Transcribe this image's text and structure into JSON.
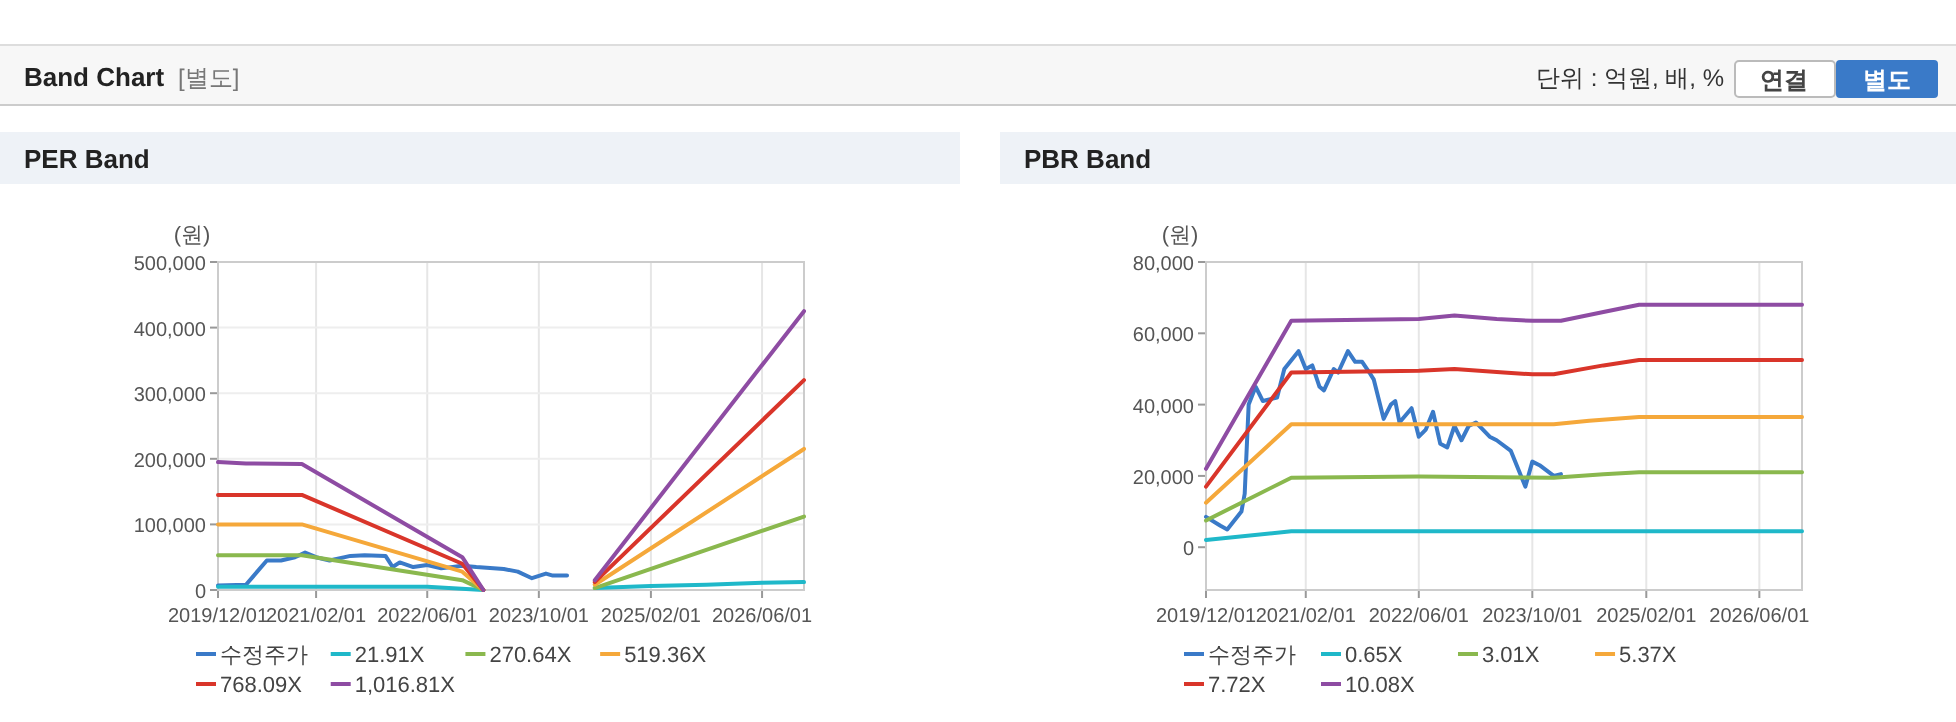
{
  "chart_data": [
    {
      "type": "other",
      "title": "Band Chart",
      "annotations": [
        "[별도]",
        "단위 : 억원, 배, %",
        "연결",
        "별도"
      ]
    },
    {
      "type": "line",
      "title": "PER Band",
      "ylabel": "(원)",
      "xlim": [
        "2019-12-01",
        "2026-12-01"
      ],
      "ylim": [
        0,
        500000
      ],
      "xticks": [
        {
          "value": "2019-12-01",
          "label": "2019/12/01"
        },
        {
          "value": "2021-02-01",
          "label": "2021/02/01"
        },
        {
          "value": "2022-06-01",
          "label": "2022/06/01"
        },
        {
          "value": "2023-10-01",
          "label": "2023/10/01"
        },
        {
          "value": "2025-02-01",
          "label": "2025/02/01"
        },
        {
          "value": "2026-06-01",
          "label": "2026/06/01"
        }
      ],
      "yticks": [
        0,
        {
          "value": 100000,
          "label": "100,000"
        },
        {
          "value": 200000,
          "label": "200,000"
        },
        {
          "value": 300000,
          "label": "300,000"
        },
        {
          "value": 400000,
          "label": "400,000"
        },
        {
          "value": 500000,
          "label": "500,000"
        }
      ],
      "grid": true,
      "legend": "bottom",
      "series": [
        {
          "name": "수정주가",
          "color": "#3a7ac8",
          "x": [
            "2019-12-01",
            "2020-04-01",
            "2020-07-01",
            "2020-09-01",
            "2020-11-01",
            "2020-12-15",
            "2021-02-01",
            "2021-04-01",
            "2021-07-01",
            "2021-09-01",
            "2021-12-01",
            "2022-01-01",
            "2022-02-01",
            "2022-04-01",
            "2022-06-01",
            "2022-08-01",
            "2022-11-01",
            "2023-01-01",
            "2023-05-01",
            "2023-07-01",
            "2023-09-01",
            "2023-11-01",
            "2023-12-01",
            "2024-02-01"
          ],
          "values": [
            7000,
            8000,
            45000,
            45000,
            50000,
            57000,
            50000,
            45000,
            52000,
            53000,
            52000,
            35000,
            42000,
            35000,
            38000,
            33000,
            37000,
            35000,
            32000,
            28000,
            18000,
            25000,
            22000,
            22000
          ]
        },
        {
          "name": "21.91X",
          "color": "#1fb8c9",
          "x": [
            "2019-12-01",
            "2022-06-01",
            "2023-02-01",
            "2023-10-01",
            "2024-06-01",
            "2025-02-01",
            "2025-10-01",
            "2026-06-01",
            "2026-12-01"
          ],
          "values": [
            5000,
            5000,
            0,
            null,
            3000,
            6000,
            8000,
            11000,
            12000
          ]
        },
        {
          "name": "270.64X",
          "color": "#8ab84e",
          "x": [
            "2019-12-01",
            "2020-12-01",
            "2022-11-01",
            "2023-02-01",
            "2023-10-01",
            "2024-06-01",
            "2026-12-01"
          ],
          "values": [
            53000,
            53000,
            15000,
            0,
            null,
            3000,
            112000
          ]
        },
        {
          "name": "519.36X",
          "color": "#f5a83a",
          "x": [
            "2019-12-01",
            "2020-12-01",
            "2022-11-01",
            "2023-02-01",
            "2023-10-01",
            "2024-06-01",
            "2026-12-01"
          ],
          "values": [
            100000,
            100000,
            28000,
            0,
            null,
            8000,
            215000
          ]
        },
        {
          "name": "768.09X",
          "color": "#d9352a",
          "x": [
            "2019-12-01",
            "2020-12-01",
            "2022-11-01",
            "2023-02-01",
            "2023-10-01",
            "2024-06-01",
            "2026-12-01"
          ],
          "values": [
            145000,
            145000,
            40000,
            0,
            null,
            12000,
            320000
          ]
        },
        {
          "name": "1,016.81X",
          "color": "#8e4ca3",
          "x": [
            "2019-12-01",
            "2020-04-01",
            "2020-12-01",
            "2022-11-01",
            "2023-02-01",
            "2023-10-01",
            "2024-06-01",
            "2026-12-01"
          ],
          "values": [
            195000,
            193000,
            192000,
            50000,
            0,
            null,
            15000,
            425000
          ]
        }
      ]
    },
    {
      "type": "line",
      "title": "PBR Band",
      "ylabel": "(원)",
      "xlim": [
        "2019-12-01",
        "2026-12-01"
      ],
      "ylim": [
        -12000,
        80000
      ],
      "xticks": [
        {
          "value": "2019-12-01",
          "label": "2019/12/01"
        },
        {
          "value": "2021-02-01",
          "label": "2021/02/01"
        },
        {
          "value": "2022-06-01",
          "label": "2022/06/01"
        },
        {
          "value": "2023-10-01",
          "label": "2023/10/01"
        },
        {
          "value": "2025-02-01",
          "label": "2025/02/01"
        },
        {
          "value": "2026-06-01",
          "label": "2026/06/01"
        }
      ],
      "yticks": [
        0,
        {
          "value": 20000,
          "label": "20,000"
        },
        {
          "value": 40000,
          "label": "40,000"
        },
        {
          "value": 60000,
          "label": "60,000"
        },
        {
          "value": 80000,
          "label": "80,000"
        }
      ],
      "grid": "x",
      "legend": "bottom",
      "series": [
        {
          "name": "수정주가",
          "color": "#3a7ac8",
          "x": [
            "2019-12-01",
            "2020-02-01",
            "2020-03-01",
            "2020-05-01",
            "2020-05-15",
            "2020-06-01",
            "2020-07-01",
            "2020-08-01",
            "2020-10-01",
            "2020-11-01",
            "2021-01-01",
            "2021-02-01",
            "2021-03-01",
            "2021-04-01",
            "2021-04-20",
            "2021-06-01",
            "2021-06-20",
            "2021-08-01",
            "2021-09-01",
            "2021-10-01",
            "2021-11-01",
            "2021-11-20",
            "2022-01-01",
            "2022-02-01",
            "2022-02-20",
            "2022-03-10",
            "2022-05-01",
            "2022-06-01",
            "2022-07-01",
            "2022-08-01",
            "2022-09-01",
            "2022-10-01",
            "2022-11-01",
            "2022-12-01",
            "2023-01-01",
            "2023-02-01",
            "2023-04-01",
            "2023-05-01",
            "2023-07-01",
            "2023-08-01",
            "2023-09-01",
            "2023-10-01",
            "2023-11-01",
            "2024-01-01",
            "2024-02-01"
          ],
          "values": [
            8500,
            6000,
            5000,
            10000,
            15000,
            40000,
            45000,
            41000,
            42000,
            50000,
            55000,
            50000,
            51000,
            45000,
            44000,
            50000,
            49000,
            55000,
            52000,
            52000,
            49000,
            47000,
            36000,
            40000,
            41000,
            35000,
            39000,
            31000,
            33000,
            38000,
            29000,
            28000,
            34000,
            30000,
            34000,
            35000,
            31000,
            30000,
            27000,
            22000,
            17000,
            24000,
            23000,
            20000,
            20500
          ]
        },
        {
          "name": "0.65X",
          "color": "#1fb8c9",
          "x": [
            "2019-12-01",
            "2020-12-01",
            "2026-12-01"
          ],
          "values": [
            2000,
            4500,
            4500
          ]
        },
        {
          "name": "3.01X",
          "color": "#8ab84e",
          "x": [
            "2019-12-01",
            "2020-12-01",
            "2022-06-01",
            "2024-01-01",
            "2024-08-01",
            "2025-01-01",
            "2026-12-01"
          ],
          "values": [
            7500,
            19500,
            19800,
            19500,
            20500,
            21000,
            21000
          ]
        },
        {
          "name": "5.37X",
          "color": "#f5a83a",
          "x": [
            "2019-12-01",
            "2020-12-01",
            "2024-01-01",
            "2024-06-01",
            "2025-01-01",
            "2026-12-01"
          ],
          "values": [
            12500,
            34500,
            34500,
            35500,
            36500,
            36500
          ]
        },
        {
          "name": "7.72X",
          "color": "#d9352a",
          "x": [
            "2019-12-01",
            "2020-12-01",
            "2022-06-01",
            "2022-11-01",
            "2023-06-01",
            "2023-10-01",
            "2024-01-01",
            "2024-08-01",
            "2025-01-01",
            "2026-12-01"
          ],
          "values": [
            17000,
            49000,
            49500,
            50000,
            49000,
            48500,
            48500,
            51000,
            52500,
            52500
          ]
        },
        {
          "name": "10.08X",
          "color": "#8e4ca3",
          "x": [
            "2019-12-01",
            "2020-12-01",
            "2022-06-01",
            "2022-11-01",
            "2023-05-01",
            "2023-10-01",
            "2024-02-01",
            "2024-08-01",
            "2025-01-01",
            "2026-12-01"
          ],
          "values": [
            22000,
            63500,
            64000,
            65000,
            64000,
            63500,
            63500,
            66000,
            68000,
            68000
          ]
        }
      ]
    }
  ]
}
